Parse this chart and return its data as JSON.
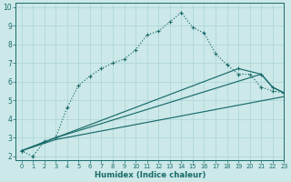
{
  "title": "",
  "xlabel": "Humidex (Indice chaleur)",
  "xlim": [
    -0.5,
    23
  ],
  "ylim": [
    1.8,
    10.2
  ],
  "xticks": [
    0,
    1,
    2,
    3,
    4,
    5,
    6,
    7,
    8,
    9,
    10,
    11,
    12,
    13,
    14,
    15,
    16,
    17,
    18,
    19,
    20,
    21,
    22,
    23
  ],
  "yticks": [
    2,
    3,
    4,
    5,
    6,
    7,
    8,
    9,
    10
  ],
  "bg_color": "#cce8e8",
  "line_color": "#1a6b6b",
  "grid_color": "#aad4d4",
  "line1_x": [
    0,
    1,
    2,
    3,
    4,
    5,
    6,
    7,
    8,
    9,
    10,
    11,
    12,
    13,
    14,
    15,
    16,
    17,
    18,
    19,
    20,
    21,
    22,
    23
  ],
  "line1_y": [
    2.3,
    2.0,
    2.8,
    3.0,
    4.6,
    5.8,
    6.3,
    6.7,
    7.0,
    7.2,
    7.7,
    8.5,
    8.7,
    9.2,
    9.7,
    8.9,
    8.6,
    7.5,
    6.9,
    6.4,
    6.4,
    5.7,
    5.5,
    5.4
  ],
  "line2_x": [
    0,
    3,
    19,
    21,
    22,
    23
  ],
  "line2_y": [
    2.3,
    3.0,
    6.7,
    6.4,
    5.7,
    5.4
  ],
  "line3_x": [
    0,
    3,
    21,
    22,
    23
  ],
  "line3_y": [
    2.3,
    3.0,
    6.4,
    5.7,
    5.4
  ],
  "line4_x": [
    0,
    3,
    23
  ],
  "line4_y": [
    2.3,
    2.9,
    5.2
  ]
}
